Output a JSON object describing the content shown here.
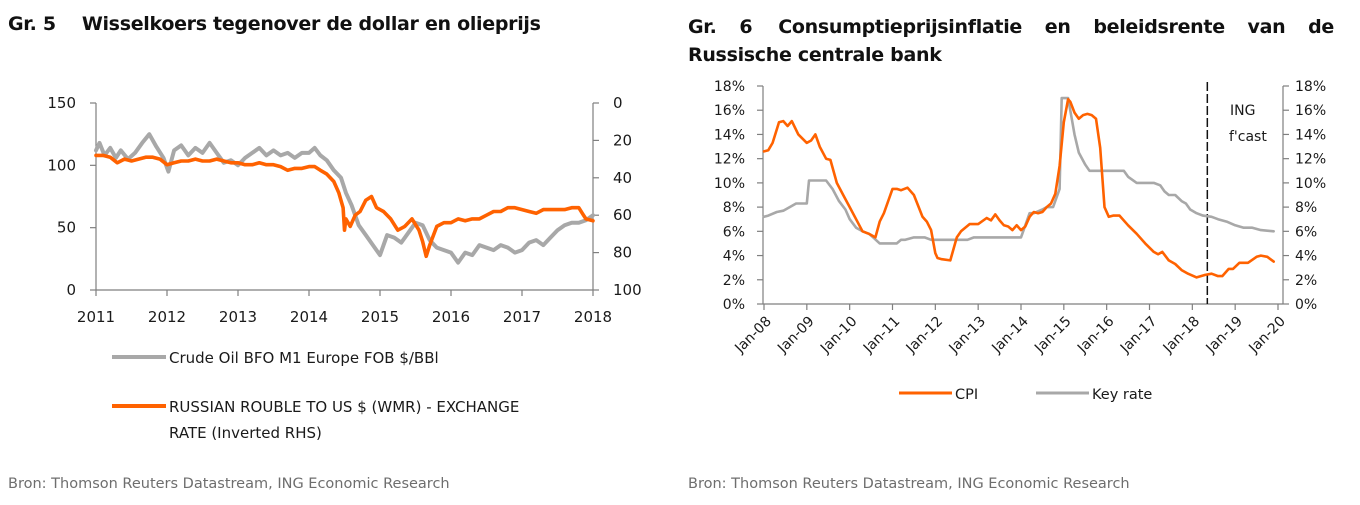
{
  "left_panel": {
    "figure_number": "Gr. 5",
    "title": "Wisselkoers tegenover de dollar en olieprijs",
    "source": "Bron: Thomson Reuters Datastream, ING Economic Research"
  },
  "right_panel": {
    "figure_number": "Gr. 6",
    "title": "Consumptieprijsinflatie en beleidsrente van de Russische centrale bank",
    "source": "Bron: Thomson Reuters Datastream, ING Economic Research",
    "annotation": [
      "ING",
      "f'cast"
    ]
  },
  "colors": {
    "orange": "#ff6200",
    "grey": "#a8a8a8",
    "axis": "#7f7f7f"
  },
  "chart_data": [
    {
      "type": "line",
      "title": "Wisselkoers tegenover de dollar en olieprijs",
      "x_ticks": [
        "2011",
        "2012",
        "2013",
        "2014",
        "2015",
        "2016",
        "2017",
        "2018"
      ],
      "xlim": [
        2011,
        2018
      ],
      "y_left": {
        "ticks": [
          "0",
          "50",
          "100",
          "150"
        ],
        "ylim": [
          0,
          150
        ]
      },
      "y_right": {
        "ticks": [
          "0",
          "20",
          "40",
          "60",
          "80",
          "100"
        ],
        "ylim": [
          0,
          100
        ],
        "inverted": true
      },
      "grid": false,
      "legend_position": "bottom",
      "series": [
        {
          "name": "Crude Oil BFO M1 Europe FOB $/BBl",
          "axis": "left",
          "color": "#a8a8a8",
          "x": [
            2011.0,
            2011.05,
            2011.12,
            2011.2,
            2011.28,
            2011.35,
            2011.45,
            2011.55,
            2011.65,
            2011.75,
            2011.85,
            2011.95,
            2012.02,
            2012.1,
            2012.2,
            2012.3,
            2012.4,
            2012.5,
            2012.6,
            2012.7,
            2012.8,
            2012.9,
            2013.0,
            2013.1,
            2013.2,
            2013.3,
            2013.4,
            2013.5,
            2013.6,
            2013.7,
            2013.8,
            2013.9,
            2014.0,
            2014.08,
            2014.16,
            2014.25,
            2014.35,
            2014.45,
            2014.52,
            2014.6,
            2014.7,
            2014.8,
            2014.9,
            2015.0,
            2015.1,
            2015.2,
            2015.3,
            2015.4,
            2015.5,
            2015.6,
            2015.7,
            2015.8,
            2015.9,
            2016.0,
            2016.1,
            2016.2,
            2016.3,
            2016.4,
            2016.5,
            2016.6,
            2016.7,
            2016.8,
            2016.9,
            2017.0,
            2017.1,
            2017.2,
            2017.3,
            2017.4,
            2017.5,
            2017.6,
            2017.7,
            2017.8,
            2017.9,
            2018.0
          ],
          "values": [
            112,
            118,
            108,
            114,
            106,
            112,
            105,
            110,
            118,
            125,
            115,
            106,
            95,
            112,
            116,
            108,
            114,
            110,
            118,
            110,
            102,
            104,
            100,
            106,
            110,
            114,
            108,
            112,
            108,
            110,
            106,
            110,
            110,
            114,
            108,
            104,
            96,
            90,
            78,
            68,
            52,
            44,
            36,
            28,
            44,
            42,
            38,
            46,
            54,
            52,
            40,
            34,
            32,
            30,
            22,
            30,
            28,
            36,
            34,
            32,
            36,
            34,
            30,
            32,
            38,
            40,
            36,
            42,
            48,
            52,
            54,
            54,
            56,
            60
          ]
        },
        {
          "name": "RUSSIAN ROUBLE TO US $ (WMR) - EXCHANGE RATE  (Inverted RHS)",
          "axis": "right",
          "color": "#ff6200",
          "x": [
            2011.0,
            2011.1,
            2011.2,
            2011.3,
            2011.4,
            2011.5,
            2011.6,
            2011.7,
            2011.8,
            2011.9,
            2012.0,
            2012.1,
            2012.2,
            2012.3,
            2012.4,
            2012.5,
            2012.6,
            2012.7,
            2012.8,
            2012.9,
            2013.0,
            2013.1,
            2013.2,
            2013.3,
            2013.4,
            2013.5,
            2013.6,
            2013.7,
            2013.8,
            2013.9,
            2014.0,
            2014.08,
            2014.16,
            2014.25,
            2014.35,
            2014.42,
            2014.48,
            2014.5,
            2014.52,
            2014.58,
            2014.65,
            2014.72,
            2014.8,
            2014.88,
            2014.95,
            2015.05,
            2015.15,
            2015.25,
            2015.35,
            2015.45,
            2015.55,
            2015.6,
            2015.65,
            2015.7,
            2015.8,
            2015.9,
            2016.0,
            2016.1,
            2016.2,
            2016.3,
            2016.4,
            2016.5,
            2016.6,
            2016.7,
            2016.8,
            2016.9,
            2017.0,
            2017.1,
            2017.2,
            2017.3,
            2017.4,
            2017.5,
            2017.6,
            2017.7,
            2017.8,
            2017.85,
            2017.9,
            2018.0
          ],
          "values": [
            28,
            28,
            29,
            32,
            30,
            31,
            30,
            29,
            29,
            30,
            33,
            32,
            31,
            31,
            30,
            31,
            31,
            30,
            31,
            32,
            32,
            33,
            33,
            32,
            33,
            33,
            34,
            36,
            35,
            35,
            34,
            34,
            36,
            38,
            42,
            48,
            56,
            68,
            62,
            66,
            60,
            58,
            52,
            50,
            56,
            58,
            62,
            68,
            66,
            62,
            68,
            74,
            82,
            76,
            66,
            64,
            64,
            62,
            63,
            62,
            62,
            60,
            58,
            58,
            56,
            56,
            57,
            58,
            59,
            57,
            57,
            57,
            57,
            56,
            56,
            59,
            62,
            63
          ]
        }
      ]
    },
    {
      "type": "line",
      "title": "Consumptieprijsinflatie en beleidsrente van de Russische centrale bank",
      "x_ticks": [
        "Jan-08",
        "Jan-09",
        "Jan-10",
        "Jan-11",
        "Jan-12",
        "Jan-13",
        "Jan-14",
        "Jan-15",
        "Jan-16",
        "Jan-17",
        "Jan-18",
        "Jan-19",
        "Jan-20"
      ],
      "xlim": [
        2008,
        2020
      ],
      "y_left": {
        "ticks": [
          "0%",
          "2%",
          "4%",
          "6%",
          "8%",
          "10%",
          "12%",
          "14%",
          "16%",
          "18%"
        ],
        "ylim": [
          0,
          18
        ]
      },
      "y_right": {
        "ticks": [
          "0%",
          "2%",
          "4%",
          "6%",
          "8%",
          "10%",
          "12%",
          "14%",
          "16%",
          "18%"
        ],
        "ylim": [
          0,
          18
        ]
      },
      "grid": false,
      "legend_position": "bottom",
      "forecast_start": 2018.35,
      "annotation": "ING f'cast",
      "series": [
        {
          "name": "CPI",
          "color": "#ff6200",
          "x": [
            2008.0,
            2008.1,
            2008.2,
            2008.35,
            2008.45,
            2008.55,
            2008.65,
            2008.8,
            2009.0,
            2009.1,
            2009.2,
            2009.3,
            2009.45,
            2009.55,
            2009.7,
            2009.85,
            2010.0,
            2010.15,
            2010.3,
            2010.45,
            2010.6,
            2010.7,
            2010.8,
            2011.0,
            2011.1,
            2011.2,
            2011.35,
            2011.5,
            2011.6,
            2011.7,
            2011.8,
            2011.9,
            2012.0,
            2012.05,
            2012.15,
            2012.35,
            2012.5,
            2012.6,
            2012.8,
            2013.0,
            2013.2,
            2013.3,
            2013.4,
            2013.5,
            2013.6,
            2013.7,
            2013.8,
            2013.9,
            2014.0,
            2014.1,
            2014.2,
            2014.3,
            2014.4,
            2014.5,
            2014.6,
            2014.7,
            2014.8,
            2014.9,
            2015.0,
            2015.1,
            2015.15,
            2015.25,
            2015.35,
            2015.45,
            2015.55,
            2015.65,
            2015.75,
            2015.85,
            2015.95,
            2016.05,
            2016.15,
            2016.3,
            2016.5,
            2016.7,
            2016.9,
            2017.1,
            2017.2,
            2017.3,
            2017.45,
            2017.6,
            2017.75,
            2017.9,
            2018.1,
            2018.3,
            2018.45,
            2018.6,
            2018.7,
            2018.85,
            2018.95,
            2019.1,
            2019.3,
            2019.5,
            2019.6,
            2019.75,
            2019.9
          ],
          "values": [
            12.6,
            12.7,
            13.3,
            15.0,
            15.1,
            14.7,
            15.1,
            14.0,
            13.3,
            13.5,
            14.0,
            13.0,
            12.0,
            11.9,
            10.0,
            9.0,
            8.0,
            7.0,
            6.0,
            5.8,
            5.5,
            6.8,
            7.5,
            9.5,
            9.5,
            9.4,
            9.6,
            9.0,
            8.1,
            7.2,
            6.8,
            6.1,
            4.2,
            3.8,
            3.7,
            3.6,
            5.5,
            6.0,
            6.6,
            6.6,
            7.1,
            6.9,
            7.4,
            6.9,
            6.5,
            6.4,
            6.1,
            6.5,
            6.1,
            6.4,
            7.2,
            7.6,
            7.5,
            7.6,
            8.0,
            8.3,
            9.1,
            11.4,
            15.0,
            16.9,
            16.7,
            15.8,
            15.3,
            15.6,
            15.7,
            15.6,
            15.3,
            12.9,
            8.0,
            7.2,
            7.3,
            7.3,
            6.5,
            5.8,
            5.0,
            4.3,
            4.1,
            4.3,
            3.6,
            3.3,
            2.8,
            2.5,
            2.2,
            2.4,
            2.5,
            2.3,
            2.3,
            2.9,
            2.9,
            3.4,
            3.4,
            3.9,
            4.0,
            3.9,
            3.5
          ]
        },
        {
          "name": "Key rate",
          "color": "#a8a8a8",
          "x": [
            2008.0,
            2008.1,
            2008.3,
            2008.45,
            2008.6,
            2008.75,
            2008.9,
            2009.0,
            2009.05,
            2009.2,
            2009.35,
            2009.45,
            2009.6,
            2009.75,
            2009.9,
            2010.0,
            2010.15,
            2010.3,
            2010.45,
            2010.55,
            2010.7,
            2010.9,
            2011.1,
            2011.2,
            2011.3,
            2011.5,
            2011.75,
            2011.9,
            2012.0,
            2012.5,
            2012.75,
            2012.9,
            2013.0,
            2013.4,
            2013.75,
            2013.9,
            2014.0,
            2014.1,
            2014.2,
            2014.3,
            2014.5,
            2014.6,
            2014.75,
            2014.9,
            2014.95,
            2015.0,
            2015.1,
            2015.2,
            2015.25,
            2015.35,
            2015.5,
            2015.6,
            2016.0,
            2016.4,
            2016.5,
            2016.7,
            2016.9,
            2017.1,
            2017.25,
            2017.35,
            2017.45,
            2017.6,
            2017.75,
            2017.85,
            2017.95,
            2018.1,
            2018.25,
            2018.45,
            2018.6,
            2018.8,
            2019.0,
            2019.2,
            2019.4,
            2019.6,
            2019.9
          ],
          "values": [
            7.2,
            7.3,
            7.6,
            7.7,
            8.0,
            8.3,
            8.3,
            8.3,
            10.2,
            10.2,
            10.2,
            10.2,
            9.5,
            8.5,
            7.8,
            7.0,
            6.3,
            6.0,
            5.8,
            5.5,
            5.0,
            5.0,
            5.0,
            5.3,
            5.3,
            5.5,
            5.5,
            5.3,
            5.3,
            5.3,
            5.3,
            5.5,
            5.5,
            5.5,
            5.5,
            5.5,
            5.5,
            6.5,
            7.5,
            7.5,
            7.8,
            8.0,
            8.0,
            9.5,
            17.0,
            17.0,
            17.0,
            15.0,
            14.0,
            12.5,
            11.5,
            11.0,
            11.0,
            11.0,
            10.5,
            10.0,
            10.0,
            10.0,
            9.8,
            9.3,
            9.0,
            9.0,
            8.5,
            8.3,
            7.8,
            7.5,
            7.3,
            7.2,
            7.0,
            6.8,
            6.5,
            6.3,
            6.3,
            6.1,
            6.0
          ]
        }
      ]
    }
  ],
  "legend_left": [
    {
      "label_lines": [
        "Crude Oil BFO M1 Europe FOB $/BBl"
      ]
    },
    {
      "label_lines": [
        "RUSSIAN ROUBLE TO US $ (WMR) - EXCHANGE",
        "RATE  (Inverted RHS)"
      ]
    }
  ],
  "legend_right": [
    {
      "label": "CPI"
    },
    {
      "label": "Key rate"
    }
  ]
}
